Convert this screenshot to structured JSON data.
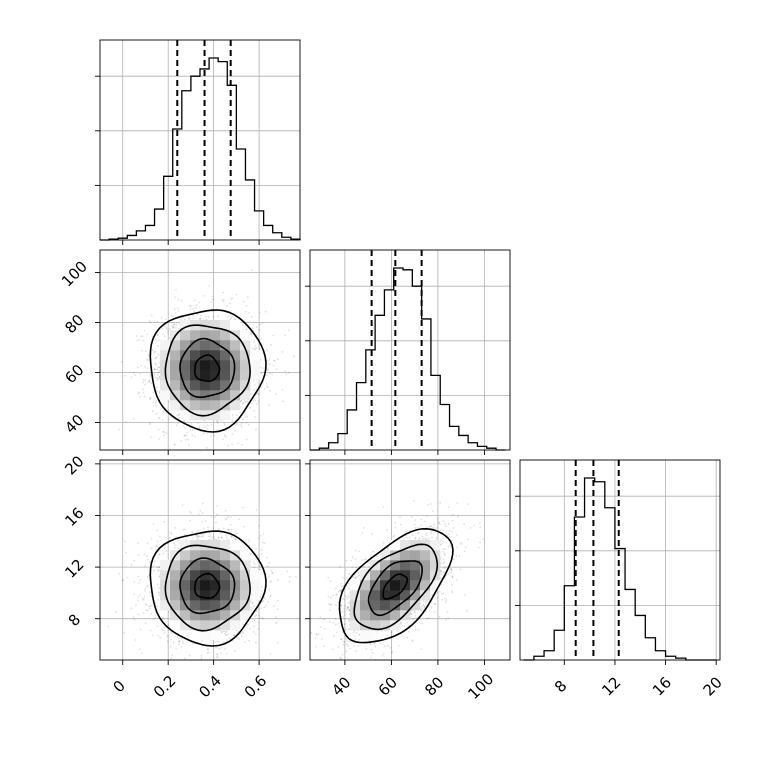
{
  "chart_data": {
    "type": "corner",
    "grid": true,
    "panels": [
      {
        "id": "p0_hist",
        "row": 0,
        "col": 0,
        "kind": "hist",
        "xlim": [
          -0.1,
          0.78
        ],
        "bin_edges": [
          -0.1,
          -0.06,
          -0.02,
          0.02,
          0.06,
          0.1,
          0.14,
          0.18,
          0.22,
          0.26,
          0.3,
          0.34,
          0.38,
          0.42,
          0.46,
          0.5,
          0.54,
          0.58,
          0.62,
          0.66,
          0.7,
          0.74,
          0.78
        ],
        "counts": [
          0,
          0.005,
          0.01,
          0.025,
          0.05,
          0.08,
          0.17,
          0.35,
          0.61,
          0.82,
          0.9,
          0.94,
          1.0,
          0.98,
          0.85,
          0.5,
          0.33,
          0.16,
          0.08,
          0.04,
          0.015,
          0.005
        ],
        "quantiles": [
          0.24,
          0.36,
          0.475
        ]
      },
      {
        "id": "p1_scatter",
        "row": 1,
        "col": 0,
        "kind": "2d",
        "xlim": [
          -0.1,
          0.78
        ],
        "ylim": [
          29,
          109
        ],
        "mean": [
          0.37,
          61.5
        ],
        "sd": [
          0.12,
          11.5
        ],
        "corr": 0.0,
        "yticks": [
          40,
          60,
          80,
          100
        ]
      },
      {
        "id": "p1_hist",
        "row": 1,
        "col": 1,
        "kind": "hist",
        "xlim": [
          25,
          111
        ],
        "bin_edges": [
          25,
          29,
          33,
          37,
          41,
          45,
          49,
          53,
          57,
          61,
          65,
          69,
          73,
          77,
          81,
          85,
          89,
          93,
          97,
          101,
          105,
          109
        ],
        "counts": [
          0,
          0.01,
          0.04,
          0.09,
          0.22,
          0.37,
          0.55,
          0.74,
          0.88,
          1.0,
          0.99,
          0.9,
          0.72,
          0.41,
          0.25,
          0.13,
          0.08,
          0.04,
          0.02,
          0.01,
          0.0
        ],
        "quantiles": [
          51.5,
          61.7,
          73.0
        ]
      },
      {
        "id": "p2_scatter_a",
        "row": 2,
        "col": 0,
        "kind": "2d",
        "xlim": [
          -0.1,
          0.78
        ],
        "ylim": [
          4.8,
          20.3
        ],
        "mean": [
          0.37,
          10.5
        ],
        "sd": [
          0.12,
          2.1
        ],
        "corr": 0.0,
        "xticks": [
          0.0,
          0.2,
          0.4,
          0.6
        ],
        "yticks": [
          8,
          12,
          16,
          20
        ]
      },
      {
        "id": "p2_scatter_b",
        "row": 2,
        "col": 1,
        "kind": "2d",
        "xlim": [
          25,
          111
        ],
        "ylim": [
          4.8,
          20.3
        ],
        "mean": [
          61.5,
          10.5
        ],
        "sd": [
          11.5,
          2.1
        ],
        "corr": 0.55,
        "xticks": [
          40,
          60,
          80,
          100
        ]
      },
      {
        "id": "p2_hist",
        "row": 2,
        "col": 2,
        "kind": "hist",
        "xlim": [
          4.5,
          20.3
        ],
        "bin_edges": [
          4.8,
          5.6,
          6.4,
          7.2,
          8.0,
          8.8,
          9.6,
          10.4,
          11.2,
          12.0,
          12.8,
          13.6,
          14.4,
          15.2,
          16.0,
          16.8,
          17.6,
          18.4,
          19.2,
          20.0
        ],
        "counts": [
          0,
          0.02,
          0.05,
          0.16,
          0.4,
          0.77,
          0.98,
          0.96,
          0.82,
          0.6,
          0.38,
          0.24,
          0.12,
          0.05,
          0.02,
          0.01,
          0.0,
          0.0,
          0.0
        ],
        "quantiles": [
          8.9,
          10.3,
          12.3
        ],
        "xticks": [
          8,
          12,
          16,
          20
        ]
      }
    ]
  }
}
